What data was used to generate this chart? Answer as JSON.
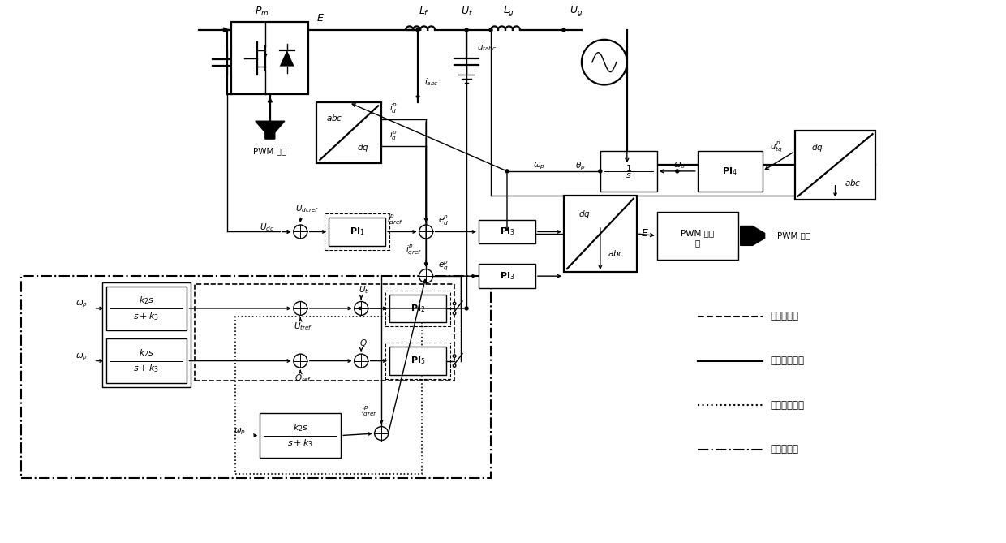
{
  "bg": "#ffffff",
  "lw": 1.0,
  "lwt": 1.6,
  "fs": 8,
  "fsm": 9,
  "fss": 7.5,
  "legend": [
    {
      "ls": "--",
      "label": "端电压控制"
    },
    {
      "ls": "-",
      "label": "无功功率控制"
    },
    {
      "ls": ":",
      "label": "无功电流控制"
    },
    {
      "ls": "-.",
      "label": "高通滤波器"
    }
  ]
}
